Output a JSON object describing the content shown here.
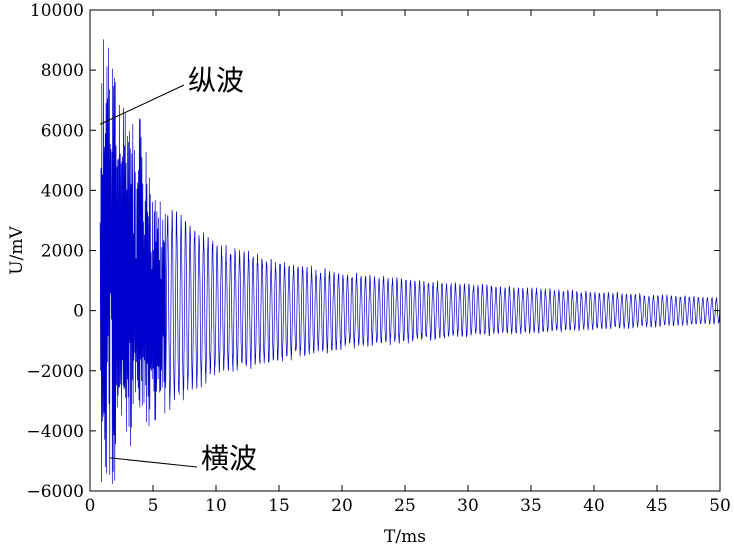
{
  "chart_data": {
    "type": "line",
    "title": "",
    "xlabel": "T/ms",
    "ylabel": "U/mV",
    "xlim": [
      0,
      50
    ],
    "ylim": [
      -6000,
      10000
    ],
    "x_ticks": [
      "0",
      "5",
      "10",
      "15",
      "20",
      "25",
      "30",
      "35",
      "40",
      "45",
      "50"
    ],
    "y_ticks": [
      "10000",
      "8000",
      "6000",
      "4000",
      "2000",
      "0",
      "−2000",
      "−4000",
      "−6000"
    ],
    "grid": false,
    "legend": "none",
    "series": [
      {
        "color": "#0000cc",
        "description_points": [
          {
            "x": 0.8,
            "y": 6200
          },
          {
            "x": 1.1,
            "y": 9300
          },
          {
            "x": 1.5,
            "y": 8700
          },
          {
            "x": 2.0,
            "y": 7600
          },
          {
            "x": 3.0,
            "y": 6300
          },
          {
            "x": 4.0,
            "y": 6400
          },
          {
            "x": 5.0,
            "y": 3900
          },
          {
            "x": 10.0,
            "y": 2300
          },
          {
            "x": 15.0,
            "y": 1700
          },
          {
            "x": 20.0,
            "y": 1300
          },
          {
            "x": 30.0,
            "y": 900
          },
          {
            "x": 40.0,
            "y": 650
          },
          {
            "x": 50.0,
            "y": 450
          },
          {
            "x": 1.2,
            "y": -5700
          },
          {
            "x": 2.0,
            "y": -5800
          },
          {
            "x": 3.0,
            "y": -4600
          },
          {
            "x": 5.0,
            "y": -3700
          },
          {
            "x": 10.0,
            "y": -2200
          },
          {
            "x": 20.0,
            "y": -1300
          },
          {
            "x": 30.0,
            "y": -900
          },
          {
            "x": 40.0,
            "y": -650
          },
          {
            "x": 50.0,
            "y": -450
          }
        ]
      }
    ],
    "annotations": [
      {
        "text": "纵波",
        "point": {
          "x": 0.8,
          "y": 6200
        }
      },
      {
        "text": "横波",
        "point": {
          "x": 1.6,
          "y": -4900
        }
      }
    ]
  }
}
